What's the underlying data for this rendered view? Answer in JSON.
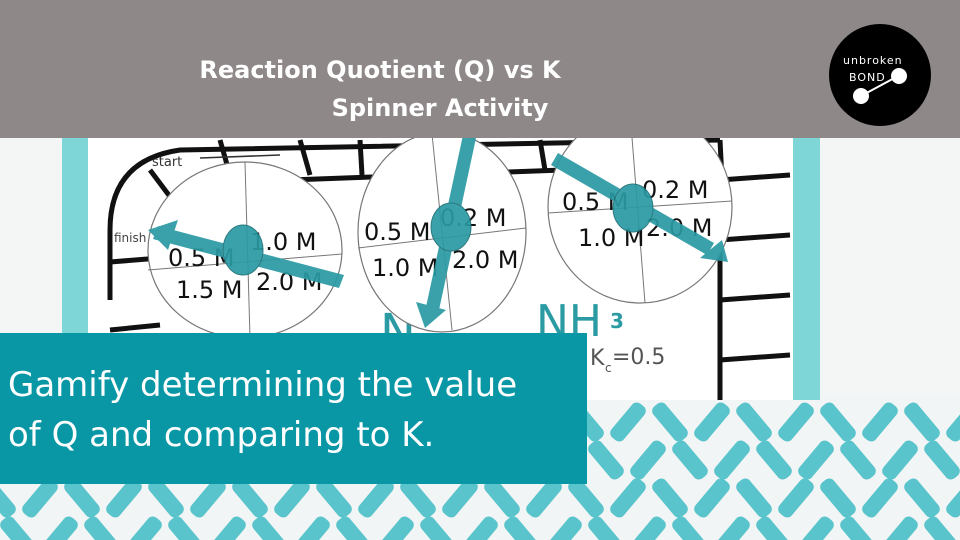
{
  "header": {
    "title_line1": "Reaction Quotient (Q) vs K",
    "title_line2": "Spinner Activity",
    "background_color": "#8e8988"
  },
  "logo": {
    "line1": "unbroken",
    "line2": "BOND"
  },
  "board": {
    "start_label": "start",
    "finish_label": "finish",
    "spinners": [
      {
        "labels": [
          "0.5 M",
          "1.0 M",
          "1.5 M",
          "2.0 M"
        ]
      },
      {
        "labels": [
          "0.5 M",
          "0.2 M",
          "1.0 M",
          "2.0 M"
        ]
      },
      {
        "labels": [
          "0.5 M",
          "0.2 M",
          "1.0 M",
          "2.0 M"
        ]
      }
    ],
    "formula_left": "N",
    "formula_right": "NH",
    "formula_subscript": "3",
    "kc_label": "K",
    "kc_sub": "c",
    "kc_value": "=0.5",
    "accent_color": "#2a9aa3"
  },
  "tagline": {
    "line1": "Gamify determining the value",
    "line2": "of Q and comparing to K.",
    "background_color": "#0a97a5"
  }
}
